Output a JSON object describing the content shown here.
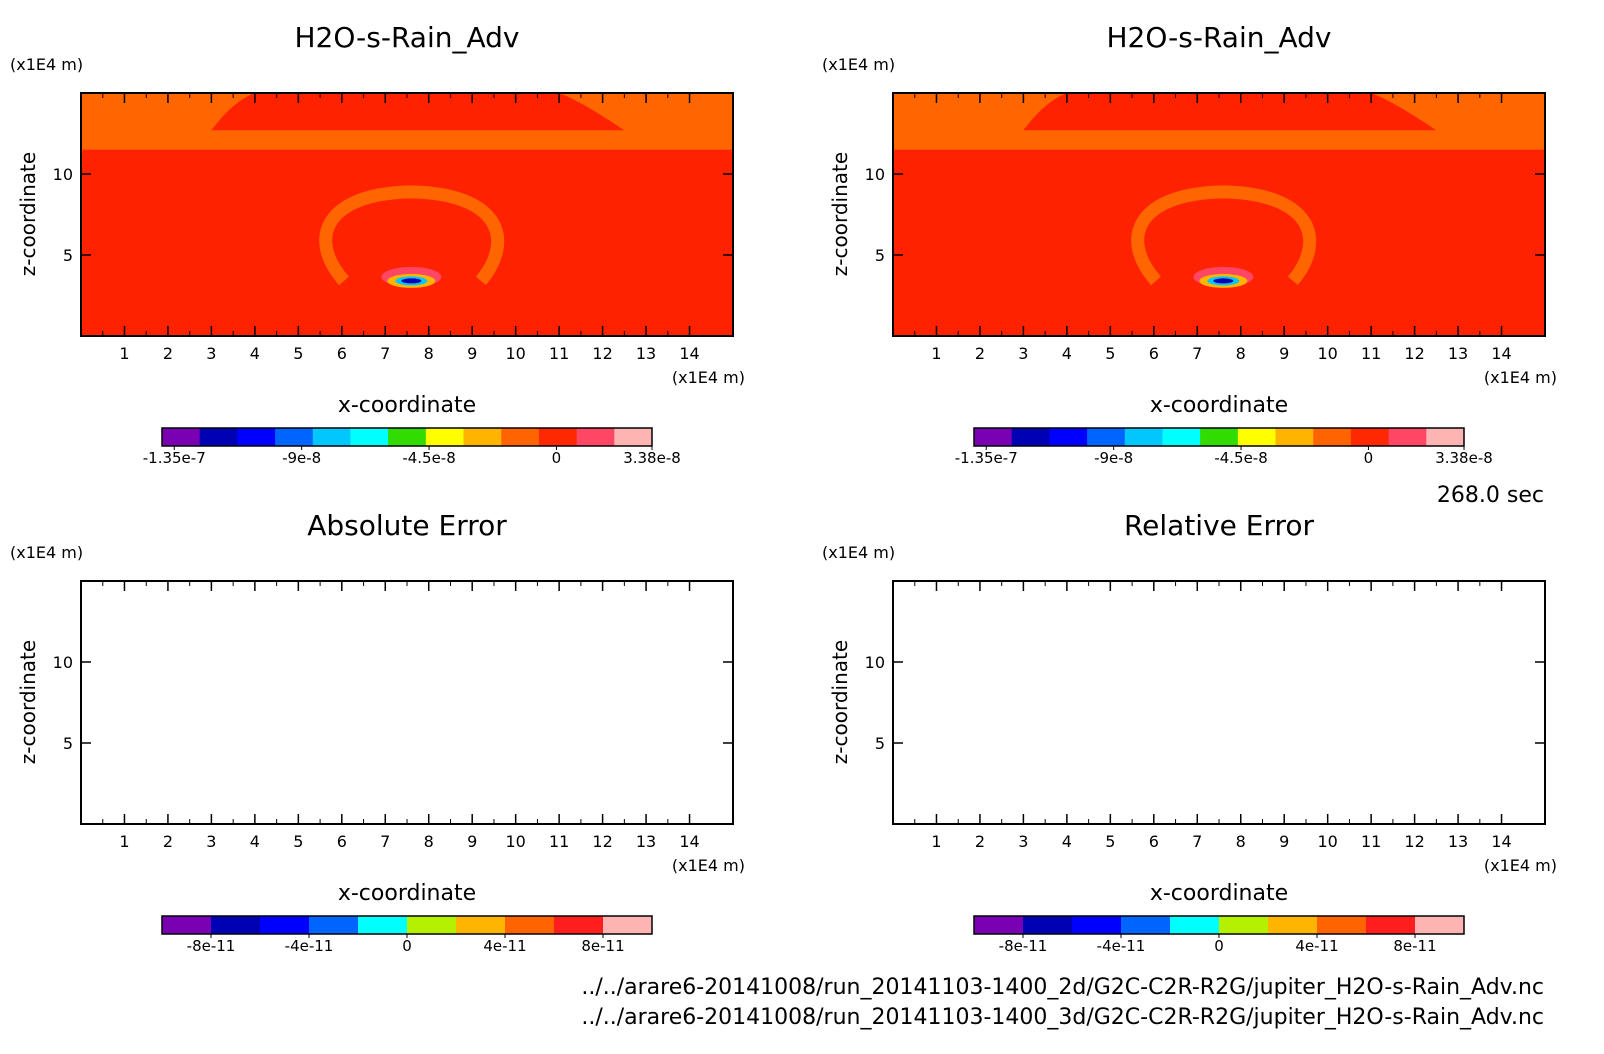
{
  "time_label": "268.0 sec",
  "footer": {
    "file1": "../../arare6-20141008/run_20141103-1400_2d/G2C-C2R-R2G/jupiter_H2O-s-Rain_Adv.nc",
    "file2": "../../arare6-20141008/run_20141103-1400_3d/G2C-C2R-R2G/jupiter_H2O-s-Rain_Adv.nc"
  },
  "chart_data": [
    {
      "type": "heatmap",
      "title": "H2O-s-Rain_Adv",
      "xlabel": "x-coordinate",
      "ylabel": "z-coordinate",
      "x_unit": "(x1E4 m)",
      "y_unit": "(x1E4 m)",
      "xlim": [
        0,
        15
      ],
      "ylim": [
        0,
        15
      ],
      "xticks": [
        "1",
        "2",
        "3",
        "4",
        "5",
        "6",
        "7",
        "8",
        "9",
        "10",
        "11",
        "12",
        "13",
        "14"
      ],
      "yticks": [
        "5",
        "10"
      ],
      "colorbar": {
        "colors": [
          "#7a00b4",
          "#0000b4",
          "#0000ff",
          "#0064ff",
          "#00c8ff",
          "#00ffff",
          "#32dc00",
          "#ffff00",
          "#ffb400",
          "#ff6400",
          "#ff2800",
          "#ff4664",
          "#ffb4b4"
        ],
        "labels": [
          "-1.35e-7",
          "-9e-8",
          "-4.5e-8",
          "0",
          "3.38e-8"
        ]
      },
      "field": {
        "background": "#ff2200",
        "upper_band": "#ff6600",
        "ring": "#ff6600",
        "core": [
          "#ff4664",
          "#ffb400",
          "#00c8ff",
          "#0000b4"
        ]
      }
    },
    {
      "type": "heatmap",
      "title": "H2O-s-Rain_Adv",
      "xlabel": "x-coordinate",
      "ylabel": "z-coordinate",
      "x_unit": "(x1E4 m)",
      "y_unit": "(x1E4 m)",
      "xlim": [
        0,
        15
      ],
      "ylim": [
        0,
        15
      ],
      "xticks": [
        "1",
        "2",
        "3",
        "4",
        "5",
        "6",
        "7",
        "8",
        "9",
        "10",
        "11",
        "12",
        "13",
        "14"
      ],
      "yticks": [
        "5",
        "10"
      ],
      "colorbar": {
        "colors": [
          "#7a00b4",
          "#0000b4",
          "#0000ff",
          "#0064ff",
          "#00c8ff",
          "#00ffff",
          "#32dc00",
          "#ffff00",
          "#ffb400",
          "#ff6400",
          "#ff2800",
          "#ff4664",
          "#ffb4b4"
        ],
        "labels": [
          "-1.35e-7",
          "-9e-8",
          "-4.5e-8",
          "0",
          "3.38e-8"
        ]
      },
      "field": {
        "background": "#ff2200",
        "upper_band": "#ff6600",
        "ring": "#ff6600",
        "core": [
          "#ff4664",
          "#ffb400",
          "#00c8ff",
          "#0000b4"
        ]
      }
    },
    {
      "type": "heatmap",
      "title": "Absolute Error",
      "xlabel": "x-coordinate",
      "ylabel": "z-coordinate",
      "x_unit": "(x1E4 m)",
      "y_unit": "(x1E4 m)",
      "xlim": [
        0,
        15
      ],
      "ylim": [
        0,
        15
      ],
      "xticks": [
        "1",
        "2",
        "3",
        "4",
        "5",
        "6",
        "7",
        "8",
        "9",
        "10",
        "11",
        "12",
        "13",
        "14"
      ],
      "yticks": [
        "5",
        "10"
      ],
      "colorbar": {
        "colors": [
          "#7a00b4",
          "#0000b4",
          "#0000ff",
          "#0064ff",
          "#00ffff",
          "#b4f000",
          "#ffb400",
          "#ff6400",
          "#ff1e1e",
          "#ffb4b4"
        ],
        "labels": [
          "-8e-11",
          "-4e-11",
          "0",
          "4e-11",
          "8e-11"
        ]
      },
      "field": null
    },
    {
      "type": "heatmap",
      "title": "Relative Error",
      "xlabel": "x-coordinate",
      "ylabel": "z-coordinate",
      "x_unit": "(x1E4 m)",
      "y_unit": "(x1E4 m)",
      "xlim": [
        0,
        15
      ],
      "ylim": [
        0,
        15
      ],
      "xticks": [
        "1",
        "2",
        "3",
        "4",
        "5",
        "6",
        "7",
        "8",
        "9",
        "10",
        "11",
        "12",
        "13",
        "14"
      ],
      "yticks": [
        "5",
        "10"
      ],
      "colorbar": {
        "colors": [
          "#7a00b4",
          "#0000b4",
          "#0000ff",
          "#0064ff",
          "#00ffff",
          "#b4f000",
          "#ffb400",
          "#ff6400",
          "#ff1e1e",
          "#ffb4b4"
        ],
        "labels": [
          "-8e-11",
          "-4e-11",
          "0",
          "4e-11",
          "8e-11"
        ]
      },
      "field": null
    }
  ]
}
